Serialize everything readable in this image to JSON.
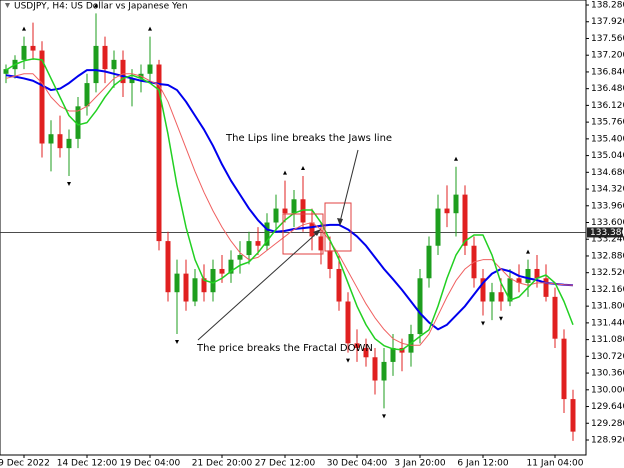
{
  "chart_data": {
    "type": "candlestick",
    "title": "USDJPY, H4:  US Dollar vs Japanese Yen",
    "ylim": [
      128.597,
      138.388
    ],
    "yticks": [
      {
        "value": 138.28,
        "label": "138.280"
      },
      {
        "value": 137.92,
        "label": "137.920"
      },
      {
        "value": 137.56,
        "label": "137.560"
      },
      {
        "value": 137.2,
        "label": "137.200"
      },
      {
        "value": 136.84,
        "label": "136.840"
      },
      {
        "value": 136.48,
        "label": "136.480"
      },
      {
        "value": 136.12,
        "label": "136.120"
      },
      {
        "value": 135.76,
        "label": "135.760"
      },
      {
        "value": 135.4,
        "label": "135.400"
      },
      {
        "value": 135.04,
        "label": "135.040"
      },
      {
        "value": 134.68,
        "label": "134.680"
      },
      {
        "value": 134.32,
        "label": "134.320"
      },
      {
        "value": 133.96,
        "label": "133.960"
      },
      {
        "value": 133.6,
        "label": "133.600"
      },
      {
        "value": 133.24,
        "label": "133.240"
      },
      {
        "value": 132.88,
        "label": "132.880"
      },
      {
        "value": 132.52,
        "label": "132.520"
      },
      {
        "value": 132.16,
        "label": "132.160"
      },
      {
        "value": 131.8,
        "label": "131.800"
      },
      {
        "value": 131.44,
        "label": "131.440"
      },
      {
        "value": 131.08,
        "label": "131.080"
      },
      {
        "value": 130.72,
        "label": "130.720"
      },
      {
        "value": 130.36,
        "label": "130.360"
      },
      {
        "value": 130.0,
        "label": "130.000"
      },
      {
        "value": 129.64,
        "label": "129.640"
      },
      {
        "value": 129.28,
        "label": "129.280"
      },
      {
        "value": 128.92,
        "label": "128.920"
      }
    ],
    "xticks": [
      {
        "value": 2,
        "label": "9 Dec 2022"
      },
      {
        "value": 9,
        "label": "14 Dec 12:00"
      },
      {
        "value": 16,
        "label": "19 Dec 04:00"
      },
      {
        "value": 24,
        "label": "21 Dec 20:00"
      },
      {
        "value": 31,
        "label": "27 Dec 12:00"
      },
      {
        "value": 39,
        "label": "30 Dec 04:00"
      },
      {
        "value": 46,
        "label": "3 Jan 20:00"
      },
      {
        "value": 53,
        "label": "6 Jan 12:00"
      },
      {
        "value": 61,
        "label": "11 Jan 04:00"
      }
    ],
    "up_color": "#1e9e1e",
    "down_color": "#e02020",
    "candles": [
      [
        136.8,
        137.0,
        136.6,
        136.9
      ],
      [
        136.9,
        137.2,
        136.7,
        137.1
      ],
      [
        137.1,
        137.6,
        136.9,
        137.4
      ],
      [
        137.4,
        137.9,
        137.1,
        137.3
      ],
      [
        137.3,
        137.5,
        135.0,
        135.3
      ],
      [
        135.3,
        135.8,
        134.7,
        135.5
      ],
      [
        135.5,
        135.9,
        135.0,
        135.2
      ],
      [
        135.2,
        135.6,
        134.6,
        135.4
      ],
      [
        135.4,
        136.3,
        135.2,
        136.1
      ],
      [
        136.1,
        136.8,
        135.9,
        136.6
      ],
      [
        136.6,
        138.1,
        136.4,
        137.4
      ],
      [
        137.4,
        137.6,
        136.6,
        136.9
      ],
      [
        136.9,
        137.3,
        136.5,
        137.1
      ],
      [
        137.1,
        137.3,
        136.3,
        136.6
      ],
      [
        136.6,
        136.9,
        136.1,
        136.7
      ],
      [
        136.7,
        137.0,
        136.4,
        136.8
      ],
      [
        136.8,
        137.6,
        136.6,
        137.0
      ],
      [
        137.0,
        137.1,
        133.0,
        133.2
      ],
      [
        133.2,
        133.4,
        131.9,
        132.1
      ],
      [
        132.1,
        132.8,
        131.2,
        132.5
      ],
      [
        132.5,
        132.8,
        131.7,
        131.9
      ],
      [
        131.9,
        132.6,
        131.8,
        132.4
      ],
      [
        132.4,
        132.7,
        131.9,
        132.1
      ],
      [
        132.1,
        132.8,
        131.9,
        132.6
      ],
      [
        132.6,
        132.9,
        132.3,
        132.5
      ],
      [
        132.5,
        133.0,
        132.3,
        132.8
      ],
      [
        132.8,
        133.2,
        132.5,
        132.9
      ],
      [
        132.9,
        133.4,
        132.7,
        133.2
      ],
      [
        133.2,
        133.5,
        132.9,
        133.1
      ],
      [
        133.1,
        133.8,
        133.0,
        133.6
      ],
      [
        133.6,
        134.2,
        133.4,
        133.9
      ],
      [
        133.9,
        134.5,
        133.6,
        133.8
      ],
      [
        133.8,
        134.3,
        133.5,
        134.1
      ],
      [
        134.1,
        134.6,
        133.4,
        133.6
      ],
      [
        133.6,
        133.9,
        133.0,
        133.3
      ],
      [
        133.3,
        133.6,
        132.7,
        133.0
      ],
      [
        133.0,
        133.3,
        132.4,
        132.6
      ],
      [
        132.6,
        132.9,
        131.7,
        131.9
      ],
      [
        131.9,
        132.1,
        130.8,
        131.0
      ],
      [
        131.0,
        131.3,
        130.6,
        130.9
      ],
      [
        130.9,
        131.1,
        130.5,
        130.7
      ],
      [
        130.7,
        130.9,
        129.9,
        130.2
      ],
      [
        130.2,
        130.9,
        129.6,
        130.6
      ],
      [
        130.6,
        131.2,
        130.3,
        130.9
      ],
      [
        130.9,
        131.1,
        130.4,
        130.8
      ],
      [
        130.8,
        131.4,
        130.5,
        131.2
      ],
      [
        131.2,
        132.6,
        131.0,
        132.4
      ],
      [
        132.4,
        133.3,
        132.2,
        133.1
      ],
      [
        133.1,
        134.2,
        132.9,
        133.9
      ],
      [
        133.9,
        134.4,
        133.5,
        133.8
      ],
      [
        133.8,
        134.8,
        133.3,
        134.2
      ],
      [
        134.2,
        134.4,
        132.9,
        133.1
      ],
      [
        133.1,
        133.3,
        132.2,
        132.4
      ],
      [
        132.4,
        132.6,
        131.6,
        131.9
      ],
      [
        131.9,
        132.3,
        131.5,
        132.1
      ],
      [
        132.1,
        132.4,
        131.7,
        131.9
      ],
      [
        131.9,
        132.6,
        131.8,
        132.4
      ],
      [
        132.4,
        132.7,
        132.1,
        132.3
      ],
      [
        132.3,
        132.8,
        132.0,
        132.6
      ],
      [
        132.6,
        132.9,
        132.2,
        132.4
      ],
      [
        132.4,
        132.7,
        131.9,
        132.0
      ],
      [
        132.0,
        132.2,
        130.9,
        131.1
      ],
      [
        131.1,
        131.3,
        129.5,
        129.8
      ],
      [
        129.8,
        130.0,
        128.9,
        129.1
      ]
    ],
    "series": [
      {
        "color": "#0000ee",
        "width": 2,
        "values": [
          136.77,
          136.74,
          136.7,
          136.65,
          136.55,
          136.45,
          136.48,
          136.6,
          136.75,
          136.88,
          136.88,
          136.85,
          136.8,
          136.75,
          136.7,
          136.65,
          136.62,
          136.58,
          136.56,
          136.45,
          136.2,
          135.9,
          135.6,
          135.25,
          134.85,
          134.5,
          134.2,
          133.9,
          133.65,
          133.45,
          133.4,
          133.42,
          133.46,
          133.48,
          133.5,
          133.53,
          133.55,
          133.55,
          133.45,
          133.3,
          133.1,
          132.85,
          132.6,
          132.38,
          132.15,
          131.9,
          131.65,
          131.45,
          131.3,
          131.4,
          131.6,
          131.8,
          132.05,
          132.3,
          132.5,
          132.6,
          132.55,
          132.45,
          132.4,
          132.36,
          132.3,
          132.28,
          132.26,
          132.25
        ]
      },
      {
        "color": "#f06060",
        "width": 1,
        "values": [
          136.7,
          136.75,
          136.8,
          136.8,
          136.6,
          136.3,
          136.1,
          136.0,
          136.0,
          136.1,
          136.3,
          136.5,
          136.7,
          136.8,
          136.8,
          136.75,
          136.65,
          136.56,
          136.2,
          135.7,
          135.2,
          134.7,
          134.25,
          133.85,
          133.5,
          133.2,
          132.95,
          132.8,
          132.85,
          133.0,
          133.15,
          133.3,
          133.45,
          133.55,
          133.6,
          133.45,
          133.2,
          132.9,
          132.55,
          132.2,
          131.85,
          131.55,
          131.3,
          131.1,
          131.0,
          130.96,
          130.96,
          131.2,
          131.6,
          132.0,
          132.35,
          132.6,
          132.75,
          132.8,
          132.8,
          132.6,
          132.4,
          132.3,
          132.25,
          132.3,
          132.3,
          132.28,
          132.26,
          132.25
        ]
      },
      {
        "color": "#22d022",
        "width": 1.5,
        "values": [
          136.88,
          137.0,
          137.08,
          137.12,
          137.1,
          136.7,
          136.3,
          135.9,
          135.7,
          135.75,
          136.0,
          136.3,
          136.55,
          136.7,
          136.77,
          136.7,
          136.6,
          136.45,
          135.5,
          134.4,
          133.5,
          132.8,
          132.36,
          132.3,
          132.4,
          132.55,
          132.68,
          132.75,
          132.95,
          133.2,
          133.45,
          133.65,
          133.8,
          133.87,
          133.87,
          133.6,
          133.22,
          132.8,
          132.3,
          131.8,
          131.4,
          131.1,
          130.95,
          130.88,
          130.86,
          131.0,
          131.15,
          131.29,
          131.8,
          132.4,
          132.9,
          133.2,
          133.33,
          133.33,
          132.9,
          132.3,
          131.93,
          132.0,
          132.2,
          132.4,
          132.47,
          132.3,
          131.9,
          131.4
        ]
      }
    ],
    "current_price": 133.386,
    "fractals_up": [
      2,
      10,
      16,
      31,
      33,
      50,
      58
    ],
    "fractals_down": [
      7,
      19,
      38,
      42,
      53,
      55
    ],
    "annotations": [
      "The Lips line breaks the Jaws line",
      "The price breaks the Fractal DOWN"
    ]
  }
}
